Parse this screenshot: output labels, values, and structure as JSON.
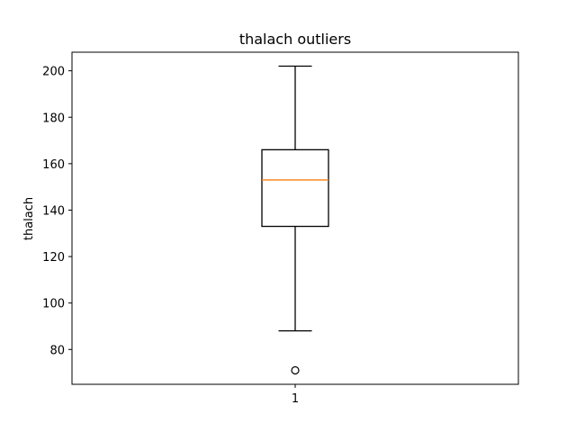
{
  "chart_data": {
    "type": "box",
    "title": "thalach outliers",
    "xlabel": "",
    "ylabel": "thalach",
    "categories": [
      "1"
    ],
    "boxes": [
      {
        "name": "1",
        "whisker_low": 88,
        "q1": 133,
        "median": 153,
        "q3": 166,
        "whisker_high": 202,
        "outliers": [
          71
        ]
      }
    ],
    "ylim": [
      65,
      208
    ],
    "yticks": [
      80,
      100,
      120,
      140,
      160,
      180,
      200
    ],
    "grid": false,
    "colors": {
      "box": "#000000",
      "median": "#ff7f0e",
      "axes": "#000000"
    }
  }
}
